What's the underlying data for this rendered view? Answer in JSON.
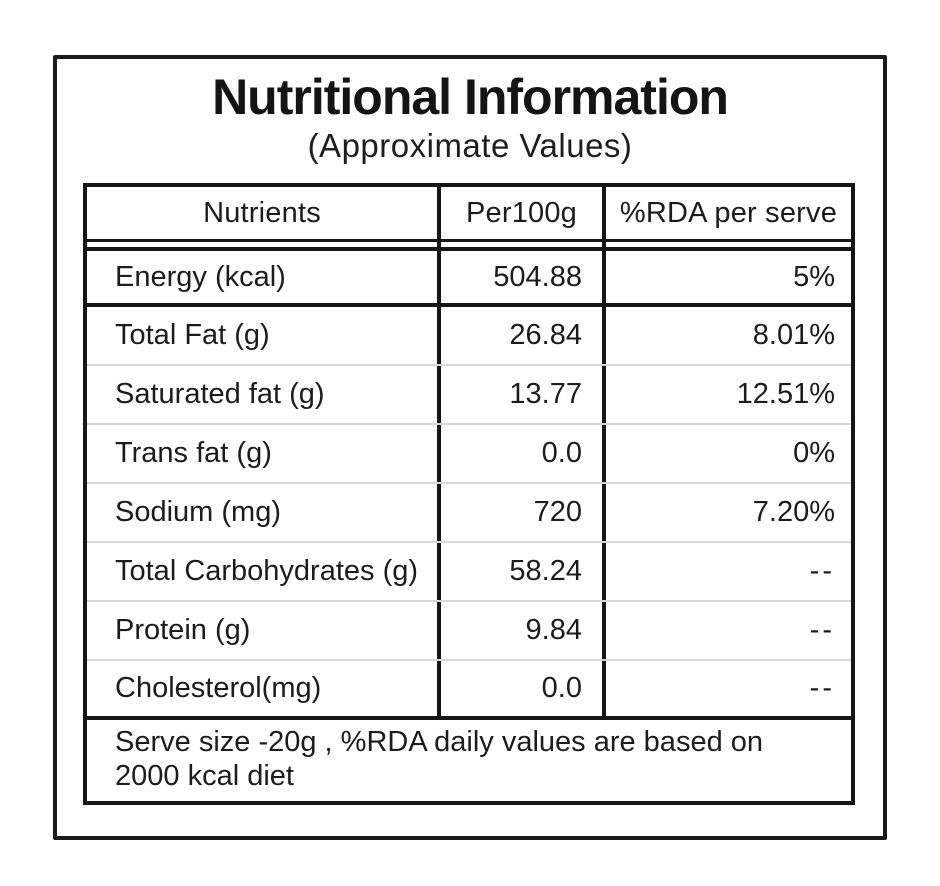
{
  "title": "Nutritional Information",
  "subtitle": "(Approximate Values)",
  "table": {
    "headers": {
      "nutrients": "Nutrients",
      "per100g": "Per100g",
      "rda": "%RDA per serve"
    },
    "rows": [
      {
        "nutrient": "Energy (kcal)",
        "per100g": "504.88",
        "rda": "5%"
      },
      {
        "nutrient": "Total Fat (g)",
        "per100g": "26.84",
        "rda": "8.01%"
      },
      {
        "nutrient": "Saturated fat (g)",
        "per100g": "13.77",
        "rda": "12.51%"
      },
      {
        "nutrient": "Trans fat (g)",
        "per100g": "0.0",
        "rda": "0%"
      },
      {
        "nutrient": "Sodium (mg)",
        "per100g": "720",
        "rda": "7.20%"
      },
      {
        "nutrient": "Total Carbohydrates (g)",
        "per100g": "58.24",
        "rda": "--"
      },
      {
        "nutrient": "Protein (g)",
        "per100g": "9.84",
        "rda": "--"
      },
      {
        "nutrient": "Cholesterol(mg)",
        "per100g": "0.0",
        "rda": "--"
      }
    ],
    "footnote_line1": "Serve size -20g , %RDA daily values are based on",
    "footnote_line2": "2000 kcal diet"
  },
  "colors": {
    "border": "#161616",
    "row_divider": "#d7d7d7",
    "text": "#1c1c1c",
    "background": "#ffffff"
  }
}
